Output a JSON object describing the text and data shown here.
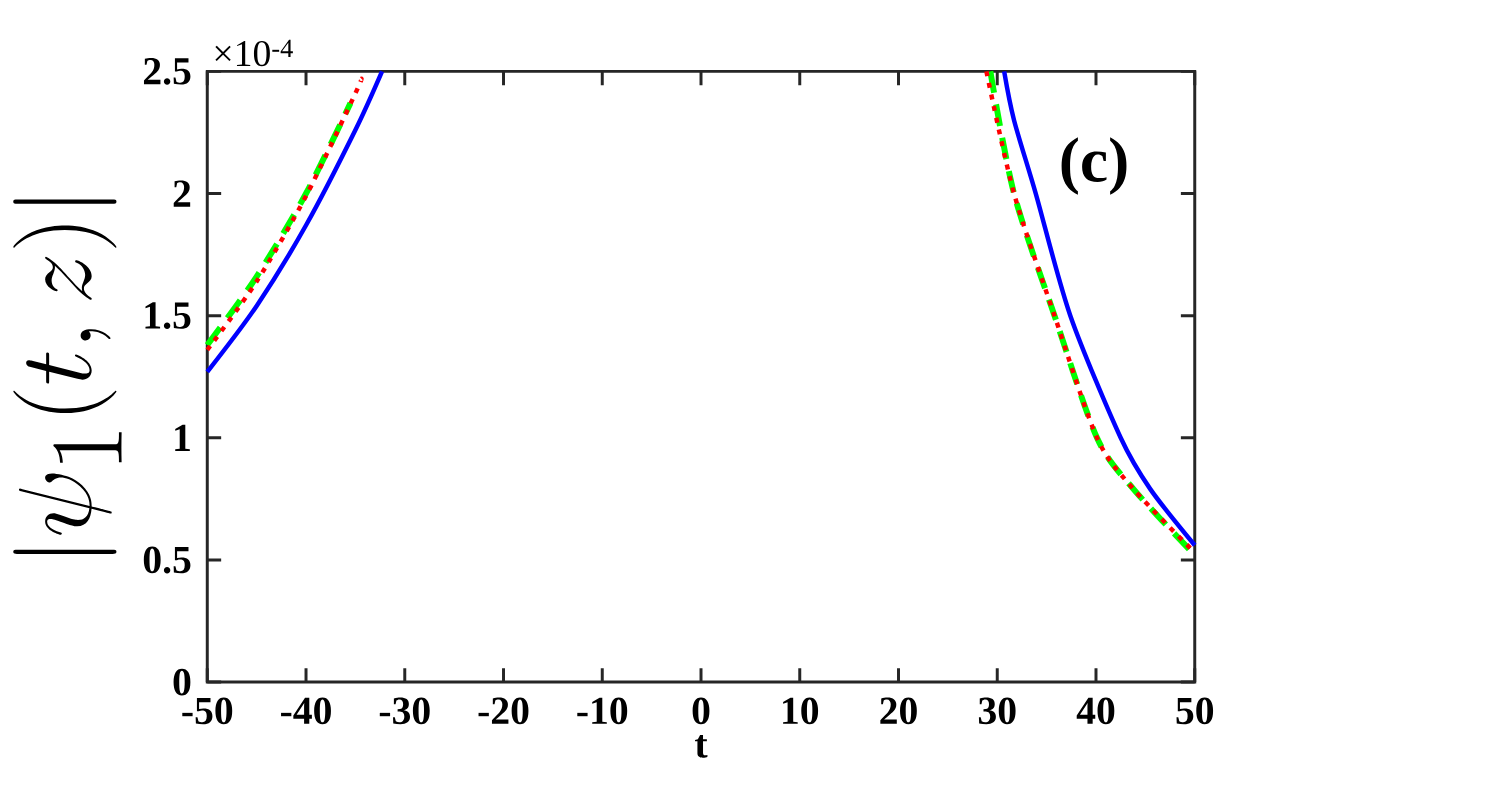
{
  "chart_data": {
    "type": "line",
    "xlabel": "t",
    "ylabel": "|\\psi_1(t,z)|",
    "annotations": [
      "×10$^{-4}$",
      "(c)"
    ],
    "xlim": [
      -50,
      50
    ],
    "ylim": [
      0,
      2.5
    ],
    "xticks": [
      -50,
      -40,
      -30,
      -20,
      -10,
      0,
      10,
      20,
      30,
      40,
      50
    ],
    "yticks": [
      0,
      0.5,
      1,
      1.5,
      2,
      2.5
    ],
    "grid": false,
    "series": [
      {
        "color": "#0000ff",
        "line_style": "solid",
        "x": [
          -50,
          -45,
          -40,
          -35,
          -32.3,
          null,
          30.7,
          31.7,
          33.9,
          37.4,
          42.5,
          45.5,
          50
        ],
        "values": [
          1.27,
          1.54,
          1.87,
          2.26,
          2.5,
          null,
          2.5,
          2.3,
          2.0,
          1.5,
          1.0,
          0.79,
          0.56
        ]
      },
      {
        "color": "#00ff00",
        "line_style": "dashed",
        "x": [
          -50,
          -45,
          -40,
          -35.5,
          null,
          29.3,
          31.7,
          35.8,
          40.1,
          43.8,
          50
        ],
        "values": [
          1.38,
          1.66,
          2.0,
          2.37,
          null,
          2.5,
          2.0,
          1.5,
          1.0,
          0.79,
          0.52
        ]
      },
      {
        "color": "#ff0000",
        "line_style": "dotted",
        "x": [
          -50,
          -45,
          -40,
          -35,
          -34.4,
          null,
          28.9,
          31.7,
          35.8,
          40.1,
          43.8,
          50
        ],
        "values": [
          1.36,
          1.64,
          1.99,
          2.41,
          2.47,
          null,
          2.5,
          2.0,
          1.5,
          1.0,
          0.79,
          0.53
        ]
      }
    ]
  }
}
